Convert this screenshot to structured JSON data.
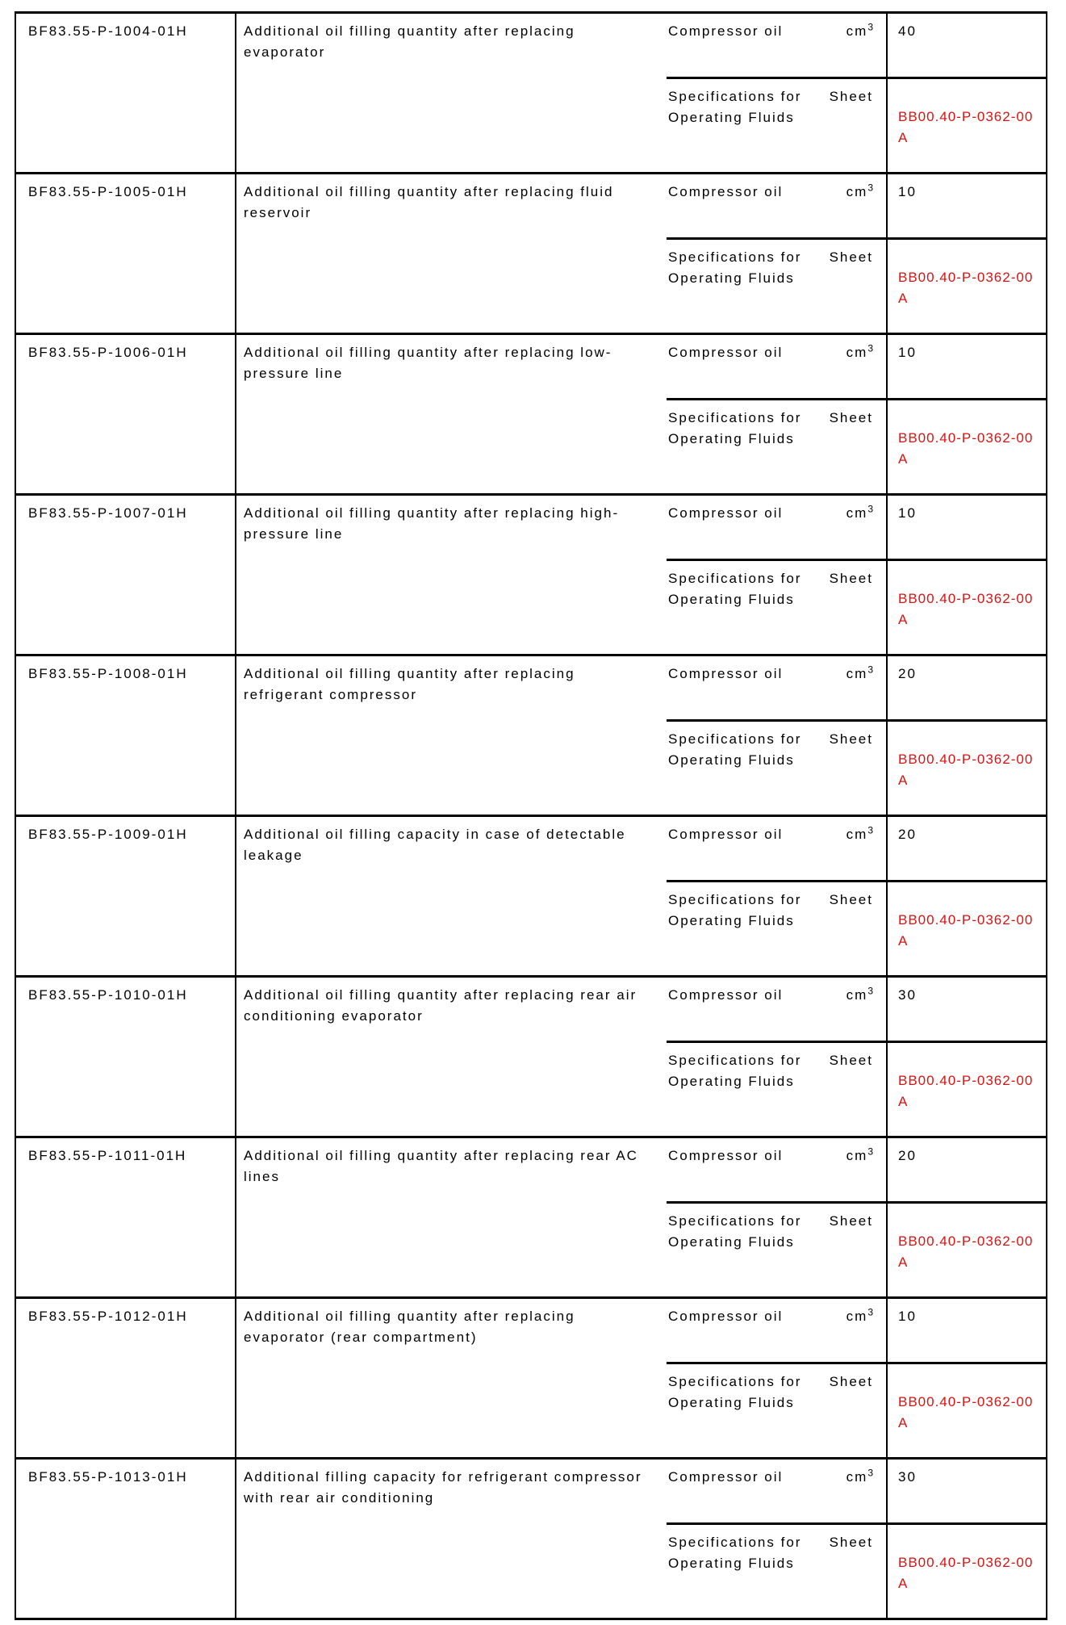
{
  "table": {
    "colors": {
      "text": "#000000",
      "border": "#000000",
      "sheet_value_red": "#dd1111"
    },
    "rows": [
      {
        "id": "BF83.55-P-1004-01H",
        "description": "Additional oil filling quantity after replacing evaporator",
        "oil_label": "Compressor oil",
        "oil_unit": "cm",
        "oil_unit_sup": "3",
        "oil_value": "40",
        "spec_label": "Specifications for Operating Fluids",
        "spec_unit": "Sheet",
        "spec_value": "BB00.40-P-0362-00 A"
      },
      {
        "id": "BF83.55-P-1005-01H",
        "description": "Additional oil filling quantity after replacing fluid reservoir",
        "oil_label": "Compressor oil",
        "oil_unit": "cm",
        "oil_unit_sup": "3",
        "oil_value": "10",
        "spec_label": "Specifications for Operating Fluids",
        "spec_unit": "Sheet",
        "spec_value": "BB00.40-P-0362-00 A"
      },
      {
        "id": "BF83.55-P-1006-01H",
        "description": "Additional oil filling quantity after replacing low-pressure line",
        "oil_label": "Compressor oil",
        "oil_unit": "cm",
        "oil_unit_sup": "3",
        "oil_value": "10",
        "spec_label": "Specifications for Operating Fluids",
        "spec_unit": "Sheet",
        "spec_value": "BB00.40-P-0362-00 A"
      },
      {
        "id": "BF83.55-P-1007-01H",
        "description": "Additional oil filling quantity after replacing high-pressure line",
        "oil_label": "Compressor oil",
        "oil_unit": "cm",
        "oil_unit_sup": "3",
        "oil_value": "10",
        "spec_label": "Specifications for Operating Fluids",
        "spec_unit": "Sheet",
        "spec_value": "BB00.40-P-0362-00 A"
      },
      {
        "id": "BF83.55-P-1008-01H",
        "description": "Additional oil filling quantity after replacing refrigerant compressor",
        "oil_label": "Compressor oil",
        "oil_unit": "cm",
        "oil_unit_sup": "3",
        "oil_value": "20",
        "spec_label": "Specifications for Operating Fluids",
        "spec_unit": "Sheet",
        "spec_value": "BB00.40-P-0362-00 A"
      },
      {
        "id": "BF83.55-P-1009-01H",
        "description": "Additional oil filling capacity in case of detectable leakage",
        "oil_label": "Compressor oil",
        "oil_unit": "cm",
        "oil_unit_sup": "3",
        "oil_value": "20",
        "spec_label": "Specifications for Operating Fluids",
        "spec_unit": "Sheet",
        "spec_value": "BB00.40-P-0362-00 A"
      },
      {
        "id": "BF83.55-P-1010-01H",
        "description": "Additional oil filling quantity after replacing rear air conditioning evaporator",
        "oil_label": "Compressor oil",
        "oil_unit": "cm",
        "oil_unit_sup": "3",
        "oil_value": "30",
        "spec_label": "Specifications for Operating Fluids",
        "spec_unit": "Sheet",
        "spec_value": "BB00.40-P-0362-00 A"
      },
      {
        "id": "BF83.55-P-1011-01H",
        "description": "Additional oil filling quantity after replacing rear AC lines",
        "oil_label": "Compressor oil",
        "oil_unit": "cm",
        "oil_unit_sup": "3",
        "oil_value": "20",
        "spec_label": "Specifications for Operating Fluids",
        "spec_unit": "Sheet",
        "spec_value": "BB00.40-P-0362-00 A"
      },
      {
        "id": "BF83.55-P-1012-01H",
        "description": "Additional oil filling quantity after replacing evaporator (rear compartment)",
        "oil_label": "Compressor oil",
        "oil_unit": "cm",
        "oil_unit_sup": "3",
        "oil_value": "10",
        "spec_label": "Specifications for Operating Fluids",
        "spec_unit": "Sheet",
        "spec_value": "BB00.40-P-0362-00 A"
      },
      {
        "id": "BF83.55-P-1013-01H",
        "description": "Additional filling capacity for refrigerant compressor with rear air conditioning",
        "oil_label": "Compressor oil",
        "oil_unit": "cm",
        "oil_unit_sup": "3",
        "oil_value": "30",
        "spec_label": "Specifications for Operating Fluids",
        "spec_unit": "Sheet",
        "spec_value": "BB00.40-P-0362-00 A"
      }
    ]
  }
}
